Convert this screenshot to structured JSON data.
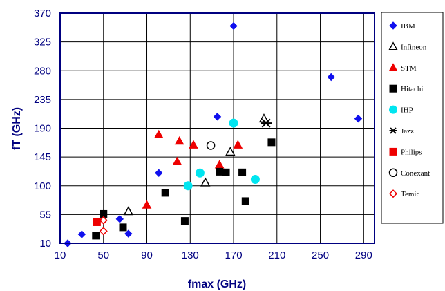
{
  "chart_data": {
    "type": "scatter",
    "title": "",
    "xlabel": "fmax  (GHz)",
    "ylabel": "fT  (GHz)",
    "xlim": [
      10,
      300
    ],
    "ylim": [
      10,
      370
    ],
    "x_ticks": [
      10,
      50,
      90,
      130,
      170,
      210,
      250,
      290
    ],
    "y_ticks": [
      10,
      55,
      100,
      145,
      190,
      235,
      280,
      325,
      370
    ],
    "grid": true,
    "legend_position": "right",
    "series": [
      {
        "name": "IBM",
        "marker": "diamond",
        "color": "#1010ee",
        "filled": true,
        "points": [
          [
            17,
            10
          ],
          [
            30,
            24
          ],
          [
            65,
            48
          ],
          [
            73,
            25
          ],
          [
            101,
            120
          ],
          [
            155,
            208
          ],
          [
            170,
            350
          ],
          [
            260,
            270
          ],
          [
            285,
            205
          ]
        ]
      },
      {
        "name": "Infineon",
        "marker": "triangle-open",
        "color": "#000000",
        "filled": false,
        "points": [
          [
            73,
            60
          ],
          [
            144,
            105
          ],
          [
            167,
            153
          ],
          [
            198,
            205
          ]
        ]
      },
      {
        "name": "STM",
        "marker": "triangle",
        "color": "#ee0000",
        "filled": true,
        "points": [
          [
            90,
            70
          ],
          [
            101,
            180
          ],
          [
            118,
            138
          ],
          [
            120,
            170
          ],
          [
            133,
            164
          ],
          [
            157,
            133
          ],
          [
            174,
            164
          ]
        ]
      },
      {
        "name": "Hitachi",
        "marker": "square",
        "color": "#000000",
        "filled": true,
        "points": [
          [
            43,
            22
          ],
          [
            50,
            56
          ],
          [
            68,
            35
          ],
          [
            107,
            89
          ],
          [
            125,
            45
          ],
          [
            157,
            122
          ],
          [
            163,
            121
          ],
          [
            178,
            121
          ],
          [
            181,
            76
          ],
          [
            205,
            168
          ]
        ]
      },
      {
        "name": "IHP",
        "marker": "circle",
        "color": "#00e5f0",
        "filled": true,
        "points": [
          [
            128,
            100
          ],
          [
            139,
            120
          ],
          [
            170,
            198
          ],
          [
            190,
            110
          ]
        ]
      },
      {
        "name": "Jazz",
        "marker": "asterisk",
        "color": "#000000",
        "filled": false,
        "points": [
          [
            200,
            198
          ]
        ]
      },
      {
        "name": "Philips",
        "marker": "square",
        "color": "#ee0000",
        "filled": true,
        "points": [
          [
            44,
            43
          ]
        ]
      },
      {
        "name": "Conexant",
        "marker": "circle-open",
        "color": "#000000",
        "filled": false,
        "points": [
          [
            149,
            163
          ]
        ]
      },
      {
        "name": "Temic",
        "marker": "diamond-open",
        "color": "#ee0000",
        "filled": false,
        "points": [
          [
            50,
            29
          ],
          [
            50,
            46
          ]
        ]
      }
    ]
  }
}
